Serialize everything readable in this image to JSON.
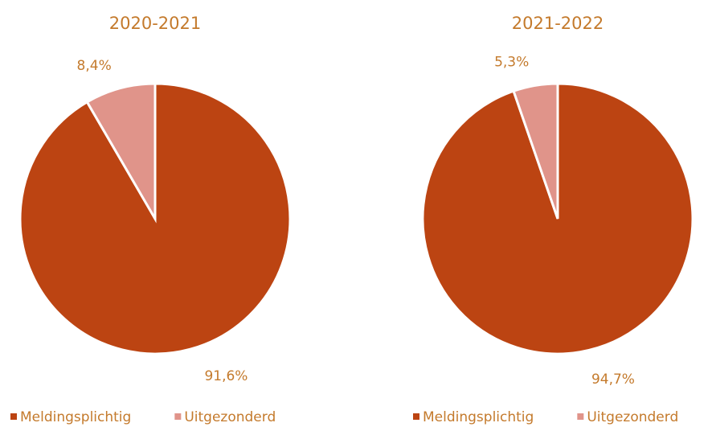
{
  "chart_data": [
    {
      "type": "pie",
      "title": "2020-2021",
      "categories": [
        "Meldingsplichtig",
        "Uitgezonderd"
      ],
      "values": [
        91.6,
        8.4
      ],
      "value_labels": [
        "91,6%",
        "8,4%"
      ],
      "colors": [
        "#bc4412",
        "#e0948a"
      ],
      "legend": "bottom"
    },
    {
      "type": "pie",
      "title": "2021-2022",
      "categories": [
        "Meldingsplichtig",
        "Uitgezonderd"
      ],
      "values": [
        94.7,
        5.3
      ],
      "value_labels": [
        "94,7%",
        "5,3%"
      ],
      "colors": [
        "#bc4412",
        "#e0948a"
      ],
      "legend": "bottom"
    }
  ]
}
